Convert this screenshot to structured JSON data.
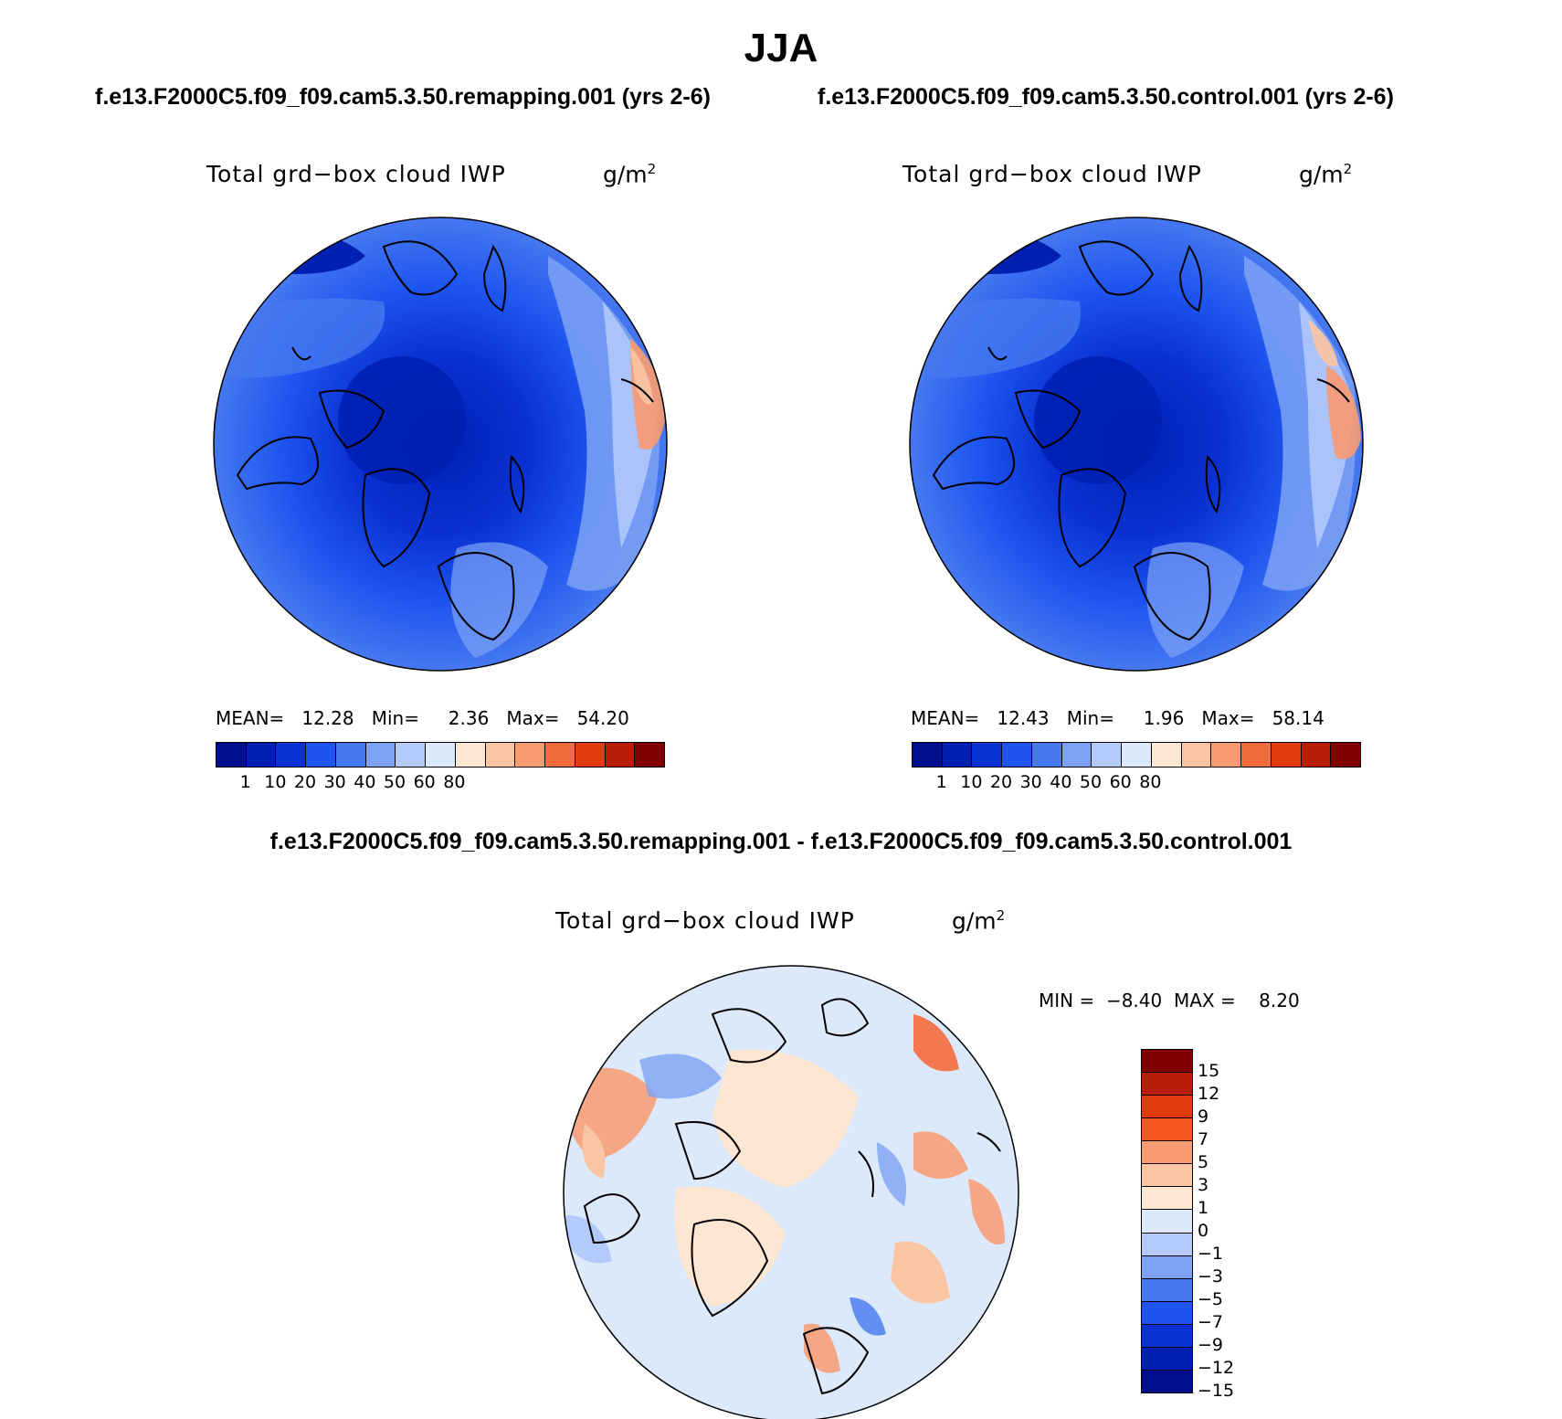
{
  "figure_title": "JJA",
  "left_case": "f.e13.F2000C5.f09_f09.cam5.3.50.remapping.001 (yrs 2-6)",
  "right_case": "f.e13.F2000C5.f09_f09.cam5.3.50.control.001 (yrs 2-6)",
  "diff_case": "f.e13.F2000C5.f09_f09.cam5.3.50.remapping.001 - f.e13.F2000C5.f09_f09.cam5.3.50.control.001",
  "panels": {
    "left": {
      "variable": "Total grd−box cloud IWP",
      "units": "g/m",
      "units_exp": "2",
      "stats": {
        "mean_label": "MEAN=",
        "mean": "12.28",
        "min_label": "Min=",
        "min": "2.36",
        "max_label": "Max=",
        "max": "54.20"
      }
    },
    "right": {
      "variable": "Total grd−box cloud IWP",
      "units": "g/m",
      "units_exp": "2",
      "stats": {
        "mean_label": "MEAN=",
        "mean": "12.43",
        "min_label": "Min=",
        "min": "1.96",
        "max_label": "Max=",
        "max": "58.14"
      }
    },
    "diff": {
      "variable": "Total grd−box cloud IWP",
      "units": "g/m",
      "units_exp": "2",
      "minmax": {
        "min_label": "MIN =",
        "min": "−8.40",
        "max_label": "MAX =",
        "max": "8.20"
      }
    }
  },
  "colorbar_abs": {
    "colors": [
      "#000f8c",
      "#0020b4",
      "#0a32d2",
      "#1e55f0",
      "#4678f0",
      "#7da2f5",
      "#b4cafa",
      "#dce9fb",
      "#fde6d2",
      "#fbc4a2",
      "#f99a70",
      "#f56c3c",
      "#e03c10",
      "#b81e06",
      "#800000"
    ],
    "labels": [
      "1",
      "10",
      "20",
      "30",
      "40",
      "50",
      "60",
      "80"
    ]
  },
  "colorbar_diff": {
    "colors": [
      "#800000",
      "#b81e06",
      "#e03c10",
      "#f5551e",
      "#f99a70",
      "#fbc4a2",
      "#fde6d2",
      "#dce9fb",
      "#b4cafa",
      "#7da2f5",
      "#4678f0",
      "#1e55f0",
      "#0a32d2",
      "#0020b4",
      "#000f8c"
    ],
    "labels": [
      "15",
      "12",
      "9",
      "7",
      "5",
      "3",
      "1",
      "0",
      "−1",
      "−3",
      "−5",
      "−7",
      "−9",
      "−12",
      "−15"
    ]
  },
  "colors": {
    "land_outline": "#000000",
    "ocean_dominant": "#0a32d2",
    "arctic_core": "#0020b4",
    "diff_background": "#dce9fb"
  }
}
